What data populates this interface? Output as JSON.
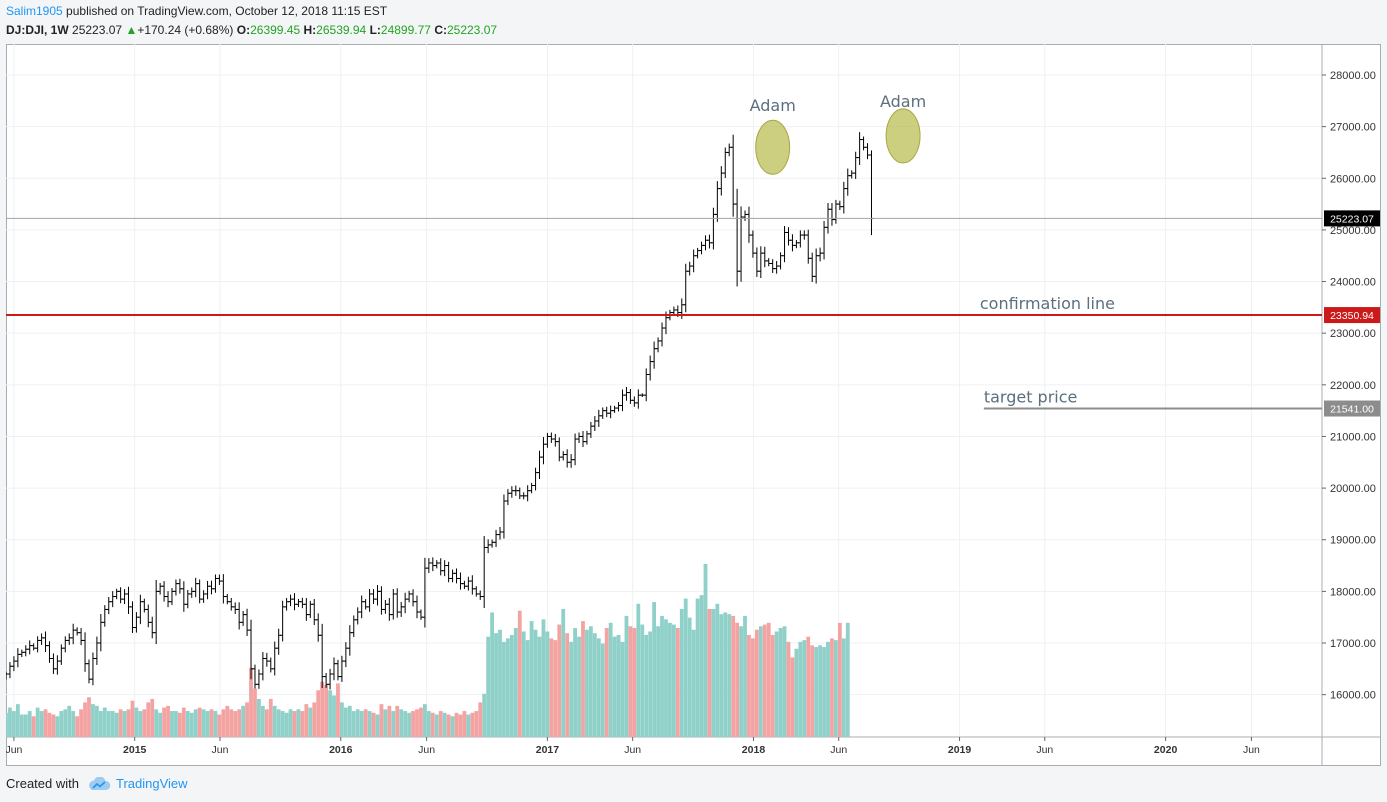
{
  "header": {
    "author": "Salim1905",
    "published": "published on TradingView.com, October 12, 2018 11:15 EST",
    "symbol": "DJ:DJI, 1W",
    "last": "25223.07",
    "change": "+170.24 (+0.68%)",
    "o_label": "O:",
    "open": "26399.45",
    "h_label": "H:",
    "high": "26539.94",
    "l_label": "L:",
    "low": "24899.77",
    "c_label": "C:",
    "close": "25223.07"
  },
  "footer": {
    "created_with": "Created with",
    "brand": "TradingView"
  },
  "colors": {
    "bar": "#000000",
    "vol_up": "#8fd0c9",
    "vol_down": "#f4a3a3",
    "confirmation": "#cc1a1a",
    "target": "#8c8c8c",
    "last_price_tag": "#000000",
    "circle": "#b7b94a",
    "annotation_text": "#5b6f7f",
    "grid": "#f0f1f3"
  },
  "chart_data": {
    "type": "ohlc",
    "y_min": 15180,
    "y_max": 28600,
    "y_ticks": [
      16000,
      17000,
      18000,
      19000,
      20000,
      21000,
      22000,
      23000,
      24000,
      25000,
      26000,
      27000,
      28000
    ],
    "y_tick_labels": [
      "16000.00",
      "17000.00",
      "18000.00",
      "19000.00",
      "20000.00",
      "21000.00",
      "22000.00",
      "23000.00",
      "24000.00",
      "25000.00",
      "26000.00",
      "27000.00",
      "28000.00"
    ],
    "x_range": [
      "2014-05-18",
      "2020-10-04"
    ],
    "x_labels": [
      {
        "date": "2014-06-01",
        "text": "Jun",
        "bold": false
      },
      {
        "date": "2015-01-01",
        "text": "2015",
        "bold": true
      },
      {
        "date": "2015-06-01",
        "text": "Jun",
        "bold": false
      },
      {
        "date": "2016-01-01",
        "text": "2016",
        "bold": true
      },
      {
        "date": "2016-06-01",
        "text": "Jun",
        "bold": false
      },
      {
        "date": "2017-01-01",
        "text": "2017",
        "bold": true
      },
      {
        "date": "2017-06-01",
        "text": "Jun",
        "bold": false
      },
      {
        "date": "2018-01-01",
        "text": "2018",
        "bold": true
      },
      {
        "date": "2018-06-01",
        "text": "Jun",
        "bold": false
      },
      {
        "date": "2019-01-01",
        "text": "2019",
        "bold": true
      },
      {
        "date": "2019-06-01",
        "text": "Jun",
        "bold": false
      },
      {
        "date": "2020-01-01",
        "text": "2020",
        "bold": true
      },
      {
        "date": "2020-06-01",
        "text": "Jun",
        "bold": false
      }
    ],
    "series_start": "2014-05-18",
    "series_interval": "1W",
    "closes": [
      16400,
      16550,
      16650,
      16780,
      16820,
      16880,
      16950,
      16900,
      17050,
      17100,
      16950,
      16700,
      16500,
      16650,
      16900,
      17050,
      17100,
      17250,
      17200,
      17050,
      16600,
      16300,
      16700,
      17000,
      17400,
      17650,
      17800,
      17900,
      18000,
      17850,
      17950,
      17700,
      17300,
      17500,
      17800,
      17650,
      17400,
      17200,
      18000,
      18100,
      17900,
      17800,
      18000,
      18150,
      18050,
      17750,
      17950,
      18000,
      18150,
      17850,
      17950,
      18100,
      18050,
      18250,
      18200,
      17900,
      17800,
      17700,
      17650,
      17400,
      17550,
      17250,
      16500,
      16200,
      16400,
      16700,
      16650,
      16500,
      16900,
      17150,
      17700,
      17800,
      17850,
      17750,
      17800,
      17750,
      17550,
      17750,
      17450,
      17150,
      16350,
      16200,
      16400,
      16600,
      16350,
      16650,
      16900,
      17200,
      17450,
      17600,
      17800,
      17700,
      17950,
      17850,
      18000,
      17650,
      17750,
      17550,
      17950,
      17600,
      17700,
      17850,
      17950,
      17800,
      17600,
      17500,
      18450,
      18550,
      18500,
      18550,
      18400,
      18500,
      18250,
      18350,
      18250,
      18150,
      18100,
      18200,
      18050,
      17950,
      17900,
      18850,
      18900,
      18950,
      19100,
      19150,
      19750,
      19900,
      19950,
      19950,
      19850,
      19850,
      19950,
      20050,
      20300,
      20600,
      20850,
      21000,
      20950,
      20900,
      20600,
      20650,
      20500,
      20550,
      20950,
      21000,
      20900,
      21050,
      21200,
      21300,
      21400,
      21500,
      21450,
      21500,
      21550,
      21600,
      21800,
      21850,
      21700,
      21650,
      21800,
      21800,
      22200,
      22450,
      22700,
      22850,
      23100,
      23300,
      23400,
      23450,
      23400,
      23550,
      24200,
      24300,
      24500,
      24600,
      24700,
      24800,
      24750,
      25300,
      25800,
      26100,
      26500,
      26600,
      25500,
      24200,
      25250,
      25300,
      24900,
      24550,
      24200,
      24550,
      24400,
      24350,
      24250,
      24300,
      24500,
      24950,
      24800,
      24700,
      24750,
      24900,
      24900,
      24450,
      24100,
      24500,
      24550,
      25050,
      25400,
      25200,
      25500,
      25450,
      25800,
      26050,
      26100,
      26400,
      26750,
      26600,
      26450,
      25220
    ],
    "volumes": [
      0.14,
      0.17,
      0.15,
      0.19,
      0.13,
      0.13,
      0.15,
      0.12,
      0.17,
      0.15,
      0.16,
      0.14,
      0.13,
      0.12,
      0.15,
      0.16,
      0.18,
      0.15,
      0.12,
      0.16,
      0.2,
      0.23,
      0.19,
      0.18,
      0.15,
      0.17,
      0.15,
      0.15,
      0.14,
      0.16,
      0.15,
      0.16,
      0.21,
      0.17,
      0.15,
      0.16,
      0.2,
      0.22,
      0.16,
      0.14,
      0.17,
      0.18,
      0.15,
      0.15,
      0.14,
      0.17,
      0.15,
      0.14,
      0.16,
      0.17,
      0.16,
      0.15,
      0.16,
      0.15,
      0.13,
      0.16,
      0.18,
      0.16,
      0.15,
      0.16,
      0.18,
      0.2,
      0.4,
      0.28,
      0.22,
      0.18,
      0.16,
      0.22,
      0.18,
      0.16,
      0.15,
      0.14,
      0.16,
      0.15,
      0.16,
      0.15,
      0.19,
      0.17,
      0.2,
      0.27,
      0.32,
      0.3,
      0.27,
      0.24,
      0.31,
      0.2,
      0.17,
      0.18,
      0.15,
      0.16,
      0.15,
      0.16,
      0.15,
      0.14,
      0.13,
      0.19,
      0.16,
      0.18,
      0.15,
      0.18,
      0.16,
      0.15,
      0.14,
      0.15,
      0.16,
      0.17,
      0.19,
      0.15,
      0.14,
      0.13,
      0.15,
      0.14,
      0.13,
      0.12,
      0.14,
      0.13,
      0.15,
      0.13,
      0.14,
      0.15,
      0.2,
      0.25,
      0.58,
      0.72,
      0.6,
      0.62,
      0.55,
      0.57,
      0.59,
      0.63,
      0.73,
      0.61,
      0.56,
      0.67,
      0.62,
      0.58,
      0.68,
      0.61,
      0.57,
      0.56,
      0.65,
      0.74,
      0.6,
      0.55,
      0.63,
      0.58,
      0.67,
      0.62,
      0.64,
      0.6,
      0.57,
      0.54,
      0.63,
      0.66,
      0.58,
      0.59,
      0.55,
      0.7,
      0.64,
      0.63,
      0.77,
      0.65,
      0.59,
      0.61,
      0.78,
      0.64,
      0.7,
      0.68,
      0.66,
      0.65,
      0.63,
      0.74,
      0.8,
      0.69,
      0.62,
      0.8,
      0.82,
      1.0,
      0.74,
      0.74,
      0.77,
      0.71,
      0.72,
      0.71,
      0.7,
      0.66,
      0.64,
      0.7,
      0.59,
      0.57,
      0.62,
      0.64,
      0.65,
      0.66,
      0.59,
      0.61,
      0.63,
      0.64,
      0.55,
      0.46,
      0.51,
      0.55,
      0.56,
      0.58,
      0.53,
      0.52,
      0.53,
      0.52,
      0.55,
      0.57,
      0.56,
      0.66,
      0.57,
      0.66
    ],
    "last_price": 25223.07,
    "last_price_label": "25223.07",
    "levels": [
      {
        "name": "confirmation line",
        "value": 23350.94,
        "label": "23350.94"
      },
      {
        "name": "target price",
        "value": 21541.0,
        "label": "21541.00"
      }
    ],
    "annotations": [
      {
        "text": "Adam",
        "date": "2018-02-04",
        "price": 27300
      },
      {
        "text": "Adam",
        "date": "2018-09-23",
        "price": 27380
      }
    ],
    "circles": [
      {
        "date": "2018-02-04",
        "price": 26600
      },
      {
        "date": "2018-09-23",
        "price": 26820
      }
    ],
    "grid": true,
    "price_scale": "right",
    "volume_overlay": "bottom"
  }
}
